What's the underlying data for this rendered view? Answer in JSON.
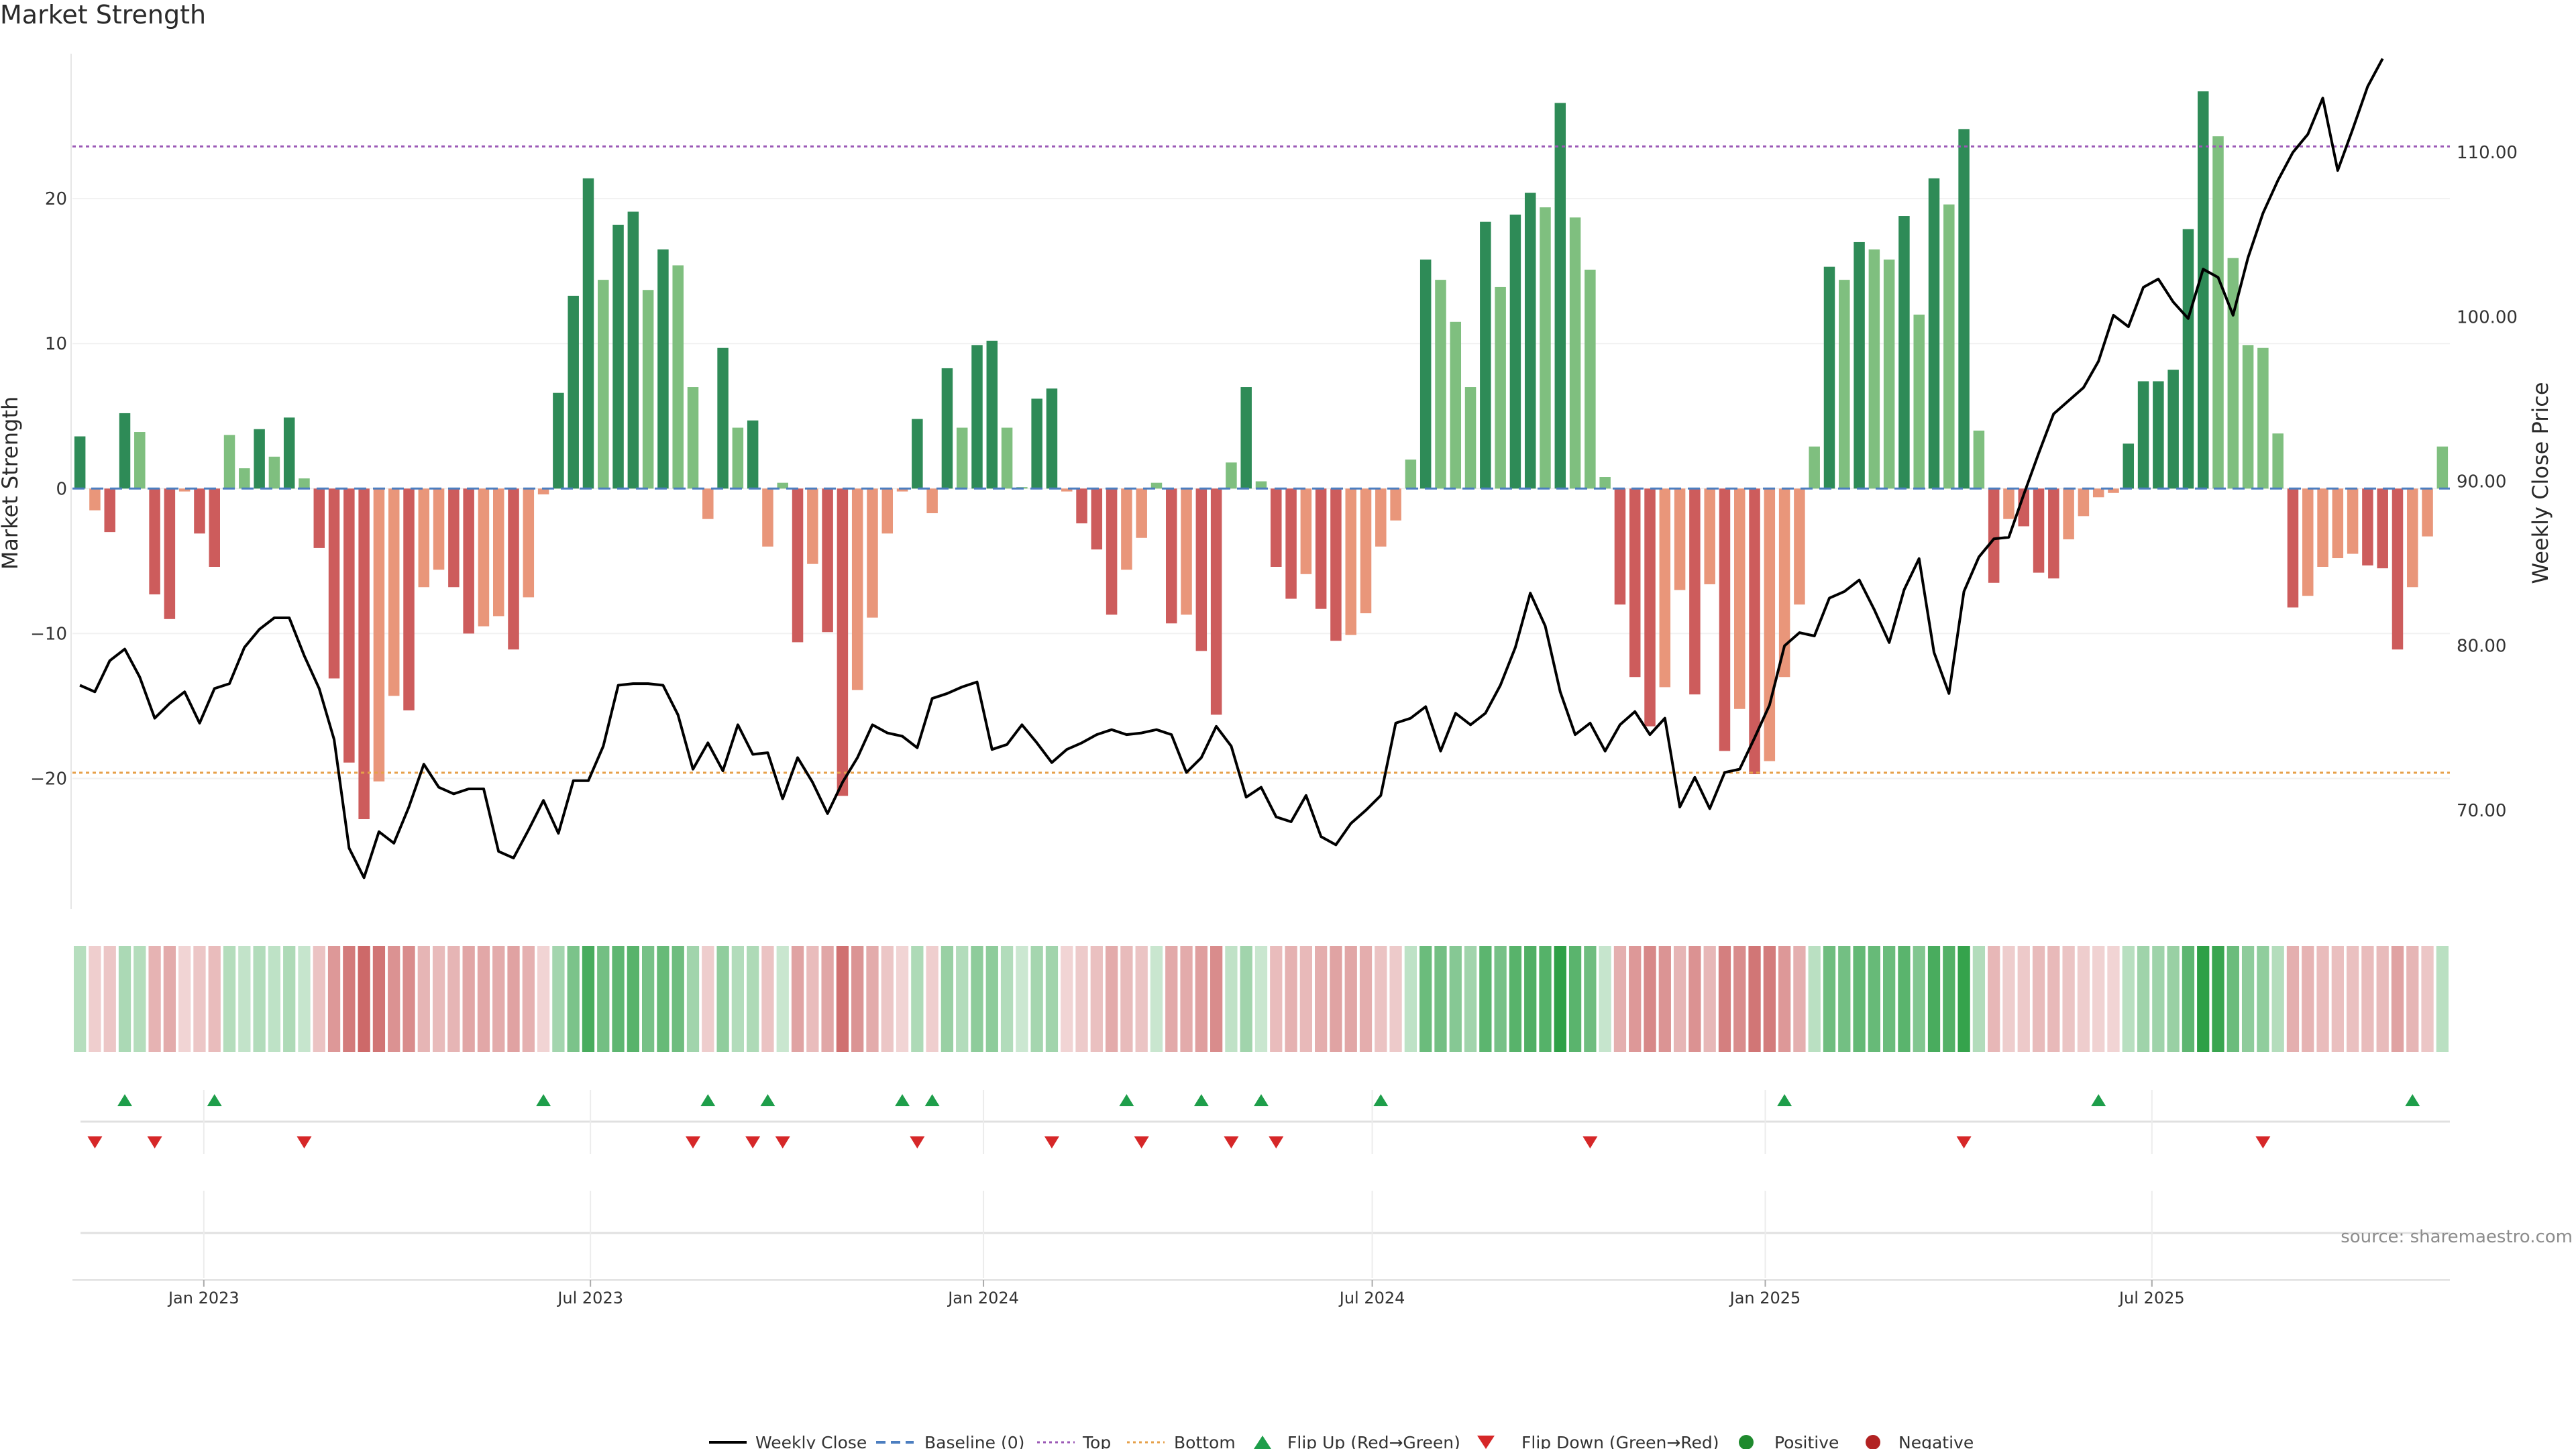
{
  "title": "Market Strength",
  "source": "source: sharemaestro.com",
  "colors": {
    "strong_green": "#2e8b57",
    "light_green": "#7fbf7f",
    "strong_red": "#cd5c5c",
    "light_red": "#e9967a",
    "price_line": "#000000",
    "top_line": "#9b59b6",
    "bottom_line": "#e6a04a",
    "baseline": "#4c7ec0",
    "flip_up": "#1e9e4a",
    "flip_down": "#d62728"
  },
  "chart_data": {
    "type": "bar",
    "title": "Market Strength",
    "ylabel": "Market Strength",
    "y2label": "Weekly Close Price",
    "ylim": [
      -29,
      30
    ],
    "y2lim": [
      64,
      116
    ],
    "yticks": [
      -20,
      -10,
      0,
      10,
      20
    ],
    "y2ticks": [
      "70.00",
      "80.00",
      "90.00",
      "100.00",
      "110.00"
    ],
    "top_level": 23.6,
    "bottom_level": -19.6,
    "start_date": "2022-11-04",
    "x_ticks": [
      {
        "label": "Jan 2023",
        "date": "2023-01-01"
      },
      {
        "label": "Jul 2023",
        "date": "2023-07-01"
      },
      {
        "label": "Jan 2024",
        "date": "2024-01-01"
      },
      {
        "label": "Jul 2024",
        "date": "2024-07-01"
      },
      {
        "label": "Jan 2025",
        "date": "2025-01-01"
      },
      {
        "label": "Jul 2025",
        "date": "2025-07-01"
      }
    ],
    "strength": [
      3.6,
      -1.5,
      -3.0,
      5.2,
      3.9,
      -7.3,
      -9.0,
      -0.2,
      -3.1,
      -5.4,
      3.7,
      1.4,
      4.1,
      2.2,
      4.9,
      0.7,
      -4.1,
      -13.1,
      -18.9,
      -22.8,
      -20.2,
      -14.3,
      -15.3,
      -6.8,
      -5.6,
      -6.8,
      -10.0,
      -9.5,
      -8.8,
      -11.1,
      -7.5,
      -0.4,
      6.6,
      13.3,
      21.4,
      14.4,
      18.2,
      19.1,
      13.7,
      16.5,
      15.4,
      7.0,
      -2.1,
      9.7,
      4.2,
      4.7,
      -4.0,
      0.4,
      -10.6,
      -5.2,
      -9.9,
      -21.2,
      -13.9,
      -8.9,
      -3.1,
      -0.2,
      4.8,
      -1.7,
      8.3,
      4.2,
      9.9,
      10.2,
      4.2,
      0.1,
      6.2,
      6.9,
      -0.2,
      -2.4,
      -4.2,
      -8.7,
      -5.6,
      -3.4,
      0.4,
      -9.3,
      -8.7,
      -11.2,
      -15.6,
      1.8,
      7.0,
      0.5,
      -5.4,
      -7.6,
      -5.9,
      -8.3,
      -10.5,
      -10.1,
      -8.6,
      -4.0,
      -2.2,
      2.0,
      15.8,
      14.4,
      11.5,
      7.0,
      18.4,
      13.9,
      18.9,
      20.4,
      19.4,
      26.6,
      18.7,
      15.1,
      0.8,
      -8.0,
      -13.0,
      -16.4,
      -13.7,
      -7.0,
      -14.2,
      -6.6,
      -18.1,
      -15.2,
      -19.7,
      -18.8,
      -13.0,
      -8.0,
      2.9,
      15.3,
      14.4,
      17.0,
      16.5,
      15.8,
      18.8,
      12.0,
      21.4,
      19.6,
      24.8,
      4.0,
      -6.5,
      -2.1,
      -2.6,
      -5.8,
      -6.2,
      -3.5,
      -1.9,
      -0.6,
      -0.3,
      3.1,
      7.4,
      7.4,
      8.2,
      17.9,
      27.4,
      24.3,
      15.9,
      9.9,
      9.7,
      3.8,
      -8.2,
      -7.4,
      -5.4,
      -4.8,
      -4.5,
      -5.3,
      -5.5,
      -11.1,
      -6.8,
      -3.3,
      2.9
    ],
    "close": [
      77.6,
      77.2,
      79.1,
      79.8,
      78.1,
      75.6,
      76.5,
      77.2,
      75.3,
      77.4,
      77.7,
      79.9,
      81.0,
      81.7,
      81.7,
      79.4,
      77.4,
      74.3,
      67.7,
      65.9,
      68.7,
      68.0,
      70.2,
      72.8,
      71.4,
      71.0,
      71.3,
      71.3,
      67.5,
      67.1,
      68.8,
      70.6,
      68.6,
      71.8,
      71.8,
      73.9,
      77.6,
      77.7,
      77.7,
      77.6,
      75.8,
      72.5,
      74.1,
      72.4,
      75.2,
      73.4,
      73.5,
      70.7,
      73.2,
      71.7,
      69.8,
      71.7,
      73.2,
      75.2,
      74.7,
      74.5,
      73.8,
      76.8,
      77.1,
      77.5,
      77.8,
      73.7,
      74.0,
      75.2,
      74.1,
      72.9,
      73.7,
      74.1,
      74.6,
      74.9,
      74.6,
      74.7,
      74.9,
      74.6,
      72.3,
      73.2,
      75.1,
      73.9,
      70.8,
      71.4,
      69.6,
      69.3,
      70.9,
      68.4,
      67.9,
      69.2,
      70.0,
      70.9,
      75.3,
      75.6,
      76.3,
      73.6,
      75.9,
      75.2,
      75.9,
      77.6,
      79.9,
      83.2,
      81.2,
      77.2,
      74.6,
      75.3,
      73.6,
      75.2,
      76.0,
      74.6,
      75.6,
      70.2,
      72.0,
      70.1,
      72.3,
      72.5,
      74.4,
      76.4,
      80.0,
      80.8,
      80.6,
      82.9,
      83.3,
      84.0,
      82.2,
      80.2,
      83.4,
      85.3,
      79.6,
      77.1,
      83.3,
      85.4,
      86.5,
      86.6,
      89.2,
      91.7,
      94.1,
      94.9,
      95.7,
      97.3,
      100.1,
      99.4,
      101.8,
      102.3,
      100.9,
      99.9,
      102.9,
      102.4,
      100.1,
      103.6,
      106.3,
      108.3,
      110.0,
      111.1,
      113.3,
      108.9,
      111.4,
      114.0,
      115.7
    ],
    "flips_up": [
      3,
      9,
      31,
      42,
      46,
      55,
      57,
      70,
      75,
      79,
      87,
      114,
      135,
      156
    ],
    "flips_down": [
      1,
      5,
      15,
      41,
      45,
      47,
      56,
      65,
      71,
      77,
      80,
      101,
      126,
      146
    ]
  },
  "legend": {
    "weekly_close": "Weekly Close",
    "baseline": "Baseline (0)",
    "top": "Top",
    "bottom": "Bottom",
    "flip_up": "Flip Up (Red→Green)",
    "flip_down": "Flip Down (Green→Red)",
    "positive": "Positive",
    "negative": "Negative"
  }
}
